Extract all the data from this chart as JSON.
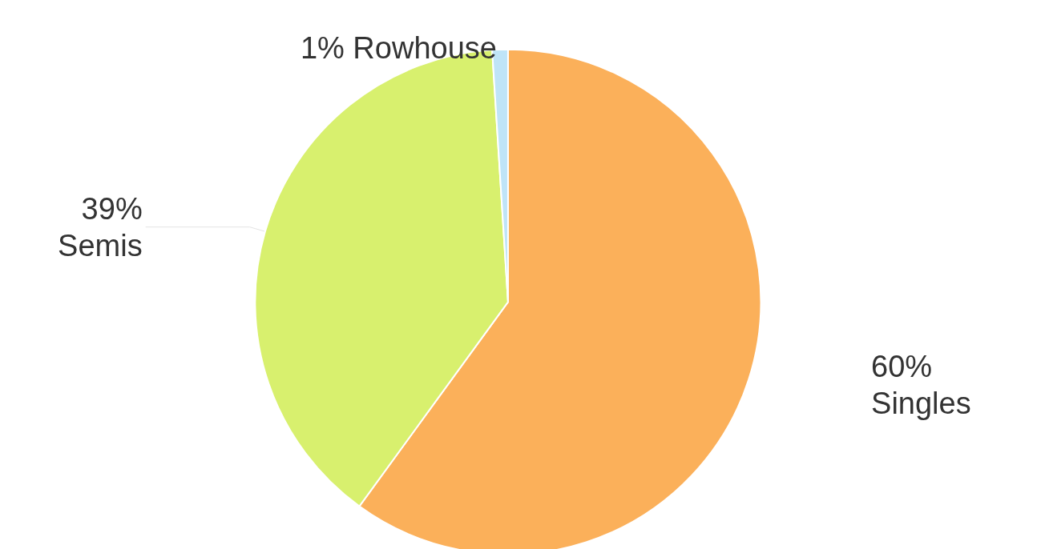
{
  "chart_data": {
    "type": "pie",
    "categories": [
      "Singles",
      "Semis",
      "Rowhouse"
    ],
    "values": [
      60,
      39,
      1
    ],
    "value_labels": [
      "60%",
      "39%",
      "1%"
    ],
    "colors": [
      "#fbb05a",
      "#d8f06e",
      "#bfe4f7"
    ],
    "legend": false
  }
}
